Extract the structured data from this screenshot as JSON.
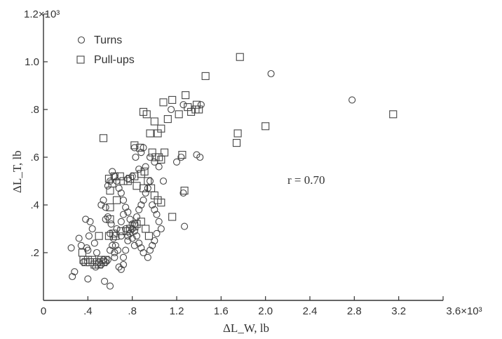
{
  "chart_data": {
    "type": "scatter",
    "xlabel": "ΔL_W, lb",
    "ylabel": "ΔL_T, lb",
    "xlim": [
      0,
      3600
    ],
    "ylim": [
      0,
      1200
    ],
    "x_ticks": [
      "0",
      ".4",
      ".8",
      "1.2",
      "1.6",
      "2.0",
      "2.4",
      "2.8",
      "3.2",
      "3.6×10³"
    ],
    "x_tick_values": [
      0,
      400,
      800,
      1200,
      1600,
      2000,
      2400,
      2800,
      3200,
      3600
    ],
    "y_ticks": [
      ".2",
      ".4",
      ".6",
      ".8",
      "1.0",
      "1.2×10³"
    ],
    "y_tick_values": [
      200,
      400,
      600,
      800,
      1000,
      1200
    ],
    "legend_position": "top-left",
    "annotation": "r = 0.70",
    "series": [
      {
        "name": "Turns",
        "marker": "circle",
        "points": [
          [
            260,
            100
          ],
          [
            280,
            120
          ],
          [
            250,
            220
          ],
          [
            320,
            260
          ],
          [
            340,
            230
          ],
          [
            360,
            160
          ],
          [
            390,
            220
          ],
          [
            400,
            210
          ],
          [
            380,
            340
          ],
          [
            420,
            330
          ],
          [
            410,
            270
          ],
          [
            400,
            90
          ],
          [
            440,
            300
          ],
          [
            460,
            240
          ],
          [
            480,
            200
          ],
          [
            500,
            160
          ],
          [
            470,
            140
          ],
          [
            520,
            150
          ],
          [
            540,
            170
          ],
          [
            560,
            160
          ],
          [
            580,
            170
          ],
          [
            550,
            80
          ],
          [
            600,
            60
          ],
          [
            520,
            400
          ],
          [
            560,
            390
          ],
          [
            580,
            350
          ],
          [
            610,
            320
          ],
          [
            600,
            280
          ],
          [
            630,
            260
          ],
          [
            650,
            230
          ],
          [
            670,
            210
          ],
          [
            680,
            140
          ],
          [
            700,
            130
          ],
          [
            720,
            150
          ],
          [
            720,
            180
          ],
          [
            740,
            210
          ],
          [
            760,
            250
          ],
          [
            780,
            280
          ],
          [
            800,
            300
          ],
          [
            820,
            320
          ],
          [
            840,
            350
          ],
          [
            860,
            380
          ],
          [
            880,
            400
          ],
          [
            900,
            420
          ],
          [
            920,
            450
          ],
          [
            940,
            470
          ],
          [
            960,
            500
          ],
          [
            980,
            400
          ],
          [
            1000,
            380
          ],
          [
            1020,
            360
          ],
          [
            1040,
            330
          ],
          [
            1060,
            300
          ],
          [
            1020,
            280
          ],
          [
            1000,
            250
          ],
          [
            980,
            230
          ],
          [
            960,
            210
          ],
          [
            940,
            180
          ],
          [
            900,
            200
          ],
          [
            880,
            220
          ],
          [
            860,
            240
          ],
          [
            840,
            270
          ],
          [
            820,
            290
          ],
          [
            800,
            320
          ],
          [
            780,
            340
          ],
          [
            760,
            370
          ],
          [
            740,
            390
          ],
          [
            720,
            420
          ],
          [
            700,
            450
          ],
          [
            680,
            470
          ],
          [
            660,
            500
          ],
          [
            640,
            520
          ],
          [
            620,
            540
          ],
          [
            600,
            500
          ],
          [
            580,
            480
          ],
          [
            660,
            300
          ],
          [
            700,
            330
          ],
          [
            720,
            360
          ],
          [
            740,
            300
          ],
          [
            760,
            270
          ],
          [
            800,
            260
          ],
          [
            820,
            230
          ],
          [
            640,
            180
          ],
          [
            700,
            270
          ],
          [
            760,
            510
          ],
          [
            800,
            520
          ],
          [
            830,
            600
          ],
          [
            860,
            550
          ],
          [
            880,
            620
          ],
          [
            900,
            640
          ],
          [
            820,
            640
          ],
          [
            920,
            560
          ],
          [
            960,
            600
          ],
          [
            1000,
            580
          ],
          [
            1040,
            560
          ],
          [
            1080,
            500
          ],
          [
            1150,
            800
          ],
          [
            1200,
            580
          ],
          [
            1240,
            600
          ],
          [
            1260,
            450
          ],
          [
            1270,
            310
          ],
          [
            1380,
            610
          ],
          [
            1410,
            600
          ],
          [
            1260,
            820
          ],
          [
            1420,
            820
          ],
          [
            2050,
            950
          ],
          [
            2780,
            840
          ],
          [
            600,
            210
          ],
          [
            640,
            200
          ],
          [
            560,
            340
          ],
          [
            540,
            420
          ],
          [
            620,
            230
          ]
        ]
      },
      {
        "name": "Pull-ups",
        "marker": "square",
        "points": [
          [
            350,
            200
          ],
          [
            360,
            170
          ],
          [
            380,
            160
          ],
          [
            400,
            170
          ],
          [
            420,
            160
          ],
          [
            440,
            170
          ],
          [
            460,
            150
          ],
          [
            480,
            160
          ],
          [
            500,
            150
          ],
          [
            520,
            170
          ],
          [
            540,
            160
          ],
          [
            560,
            170
          ],
          [
            500,
            270
          ],
          [
            590,
            270
          ],
          [
            630,
            280
          ],
          [
            650,
            270
          ],
          [
            700,
            290
          ],
          [
            750,
            290
          ],
          [
            780,
            300
          ],
          [
            820,
            310
          ],
          [
            840,
            320
          ],
          [
            880,
            330
          ],
          [
            920,
            300
          ],
          [
            950,
            270
          ],
          [
            600,
            340
          ],
          [
            600,
            460
          ],
          [
            620,
            490
          ],
          [
            590,
            510
          ],
          [
            640,
            520
          ],
          [
            690,
            520
          ],
          [
            720,
            500
          ],
          [
            760,
            500
          ],
          [
            780,
            510
          ],
          [
            820,
            520
          ],
          [
            880,
            530
          ],
          [
            900,
            470
          ],
          [
            940,
            500
          ],
          [
            970,
            470
          ],
          [
            1000,
            440
          ],
          [
            1030,
            420
          ],
          [
            1060,
            410
          ],
          [
            1040,
            600
          ],
          [
            1060,
            590
          ],
          [
            1090,
            620
          ],
          [
            1010,
            600
          ],
          [
            980,
            620
          ],
          [
            960,
            700
          ],
          [
            930,
            780
          ],
          [
            900,
            790
          ],
          [
            1000,
            750
          ],
          [
            1030,
            700
          ],
          [
            1060,
            720
          ],
          [
            1080,
            830
          ],
          [
            1120,
            760
          ],
          [
            1160,
            840
          ],
          [
            1220,
            780
          ],
          [
            1280,
            860
          ],
          [
            1300,
            810
          ],
          [
            1330,
            790
          ],
          [
            1370,
            800
          ],
          [
            1380,
            820
          ],
          [
            1400,
            800
          ],
          [
            1460,
            940
          ],
          [
            1250,
            610
          ],
          [
            1270,
            460
          ],
          [
            1160,
            350
          ],
          [
            1740,
            660
          ],
          [
            1750,
            700
          ],
          [
            1770,
            1020
          ],
          [
            2000,
            730
          ],
          [
            3150,
            780
          ],
          [
            540,
            680
          ],
          [
            870,
            640
          ],
          [
            910,
            540
          ],
          [
            600,
            390
          ],
          [
            660,
            420
          ],
          [
            820,
            650
          ],
          [
            840,
            480
          ]
        ]
      }
    ]
  }
}
